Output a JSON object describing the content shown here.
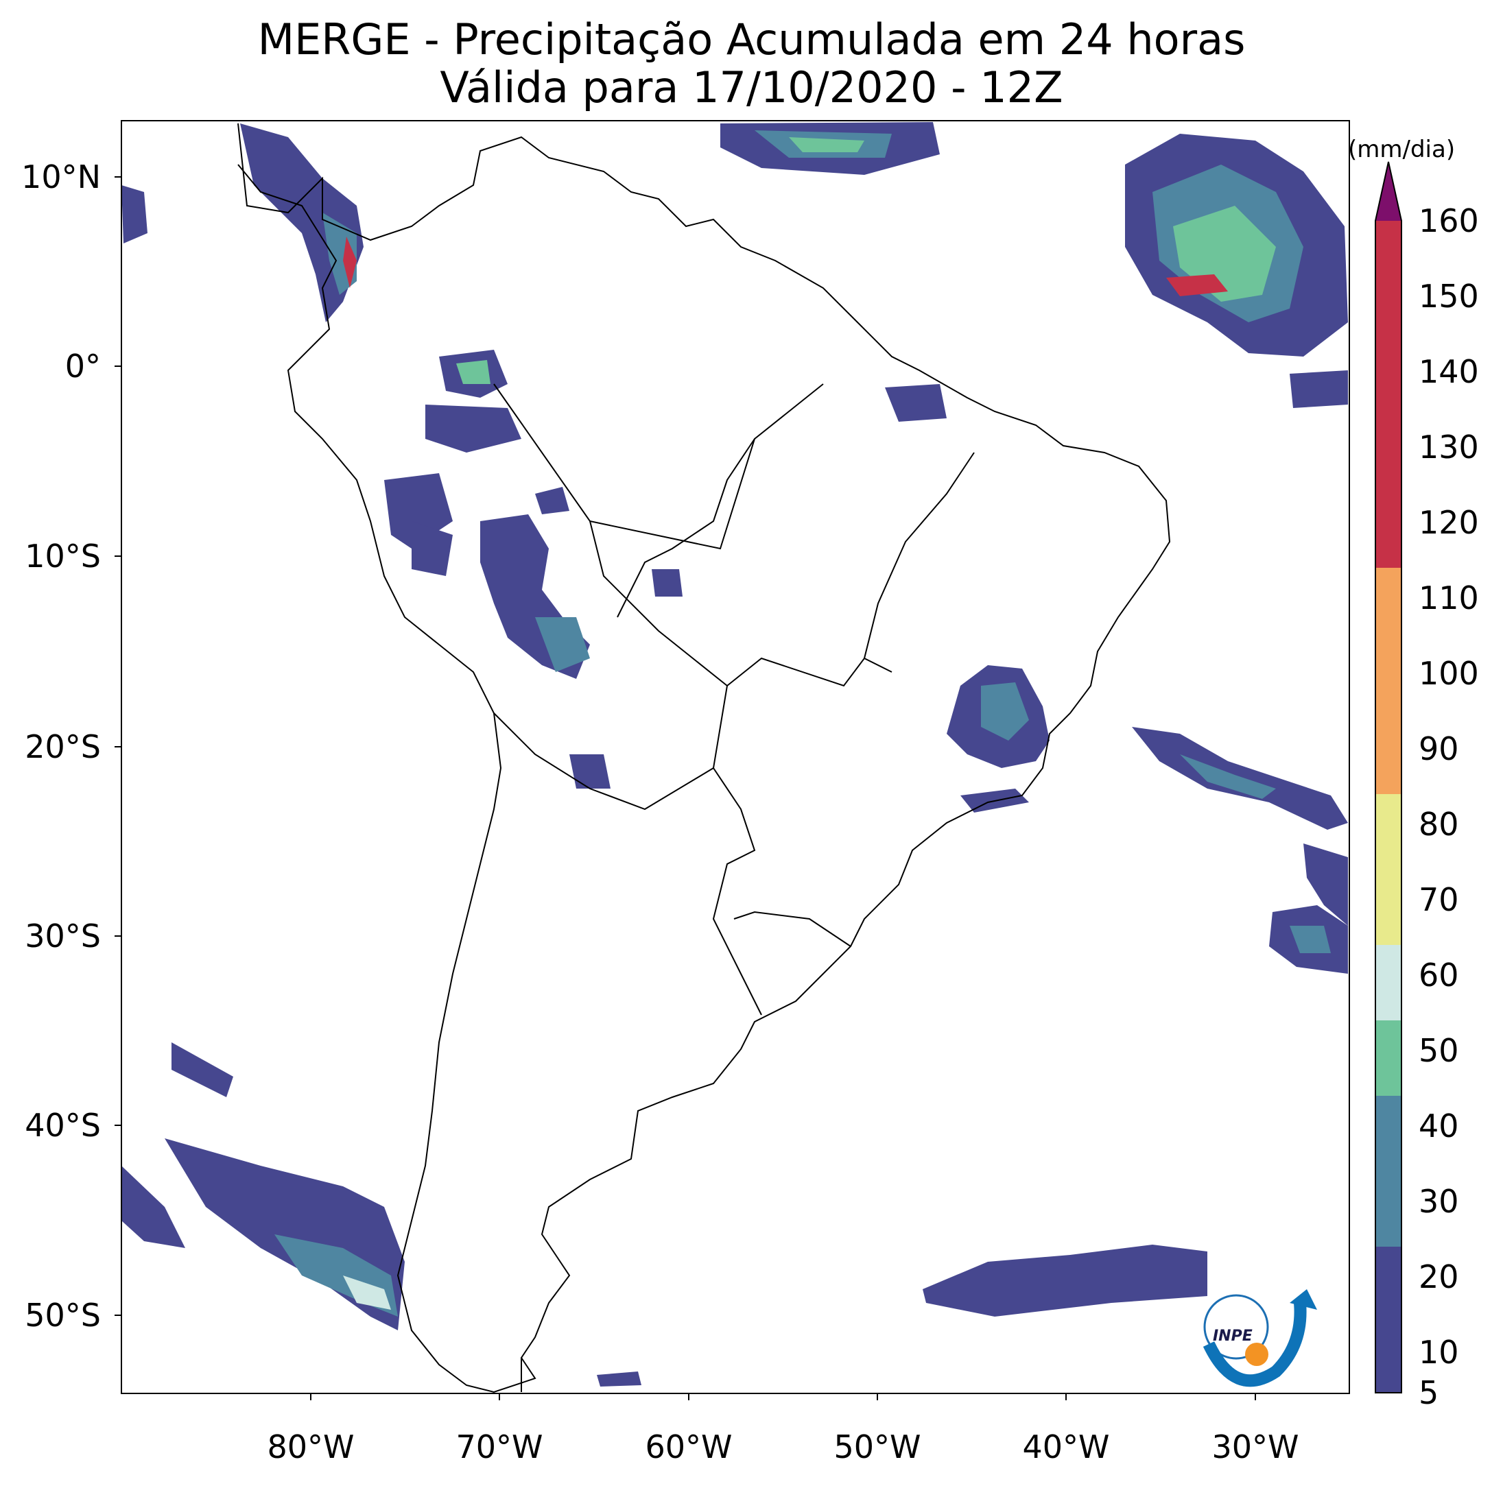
{
  "header": {
    "title_line1": "MERGE - Precipitação Acumulada em 24 horas",
    "title_line2": "Válida para 17/10/2020 - 12Z"
  },
  "map": {
    "extent": {
      "lon_min": -90,
      "lon_max": -25,
      "lat_min": -56,
      "lat_max": 13
    },
    "lat_labels": [
      "10°N",
      "0°",
      "10°S",
      "20°S",
      "30°S",
      "40°S",
      "50°S"
    ],
    "lon_labels": [
      "80°W",
      "70°W",
      "60°W",
      "50°W",
      "40°W",
      "30°W"
    ]
  },
  "colorbar": {
    "unit": "(mm/dia)",
    "ticks": [
      "160",
      "150",
      "140",
      "130",
      "120",
      "110",
      "100",
      "90",
      "80",
      "70",
      "60",
      "50",
      "40",
      "30",
      "20",
      "10",
      "5"
    ],
    "extend": "max",
    "colors": {
      "low": "#46478f",
      "mid_low": "#4f86a1",
      "mid": "#6ec49a",
      "mid_high": "#cfe8e4",
      "yellow": "#e8ea8c",
      "orange": "#f4a35c",
      "red": "#c63147",
      "top": "#7d0f6b"
    }
  },
  "logo": {
    "text": "INPE"
  }
}
